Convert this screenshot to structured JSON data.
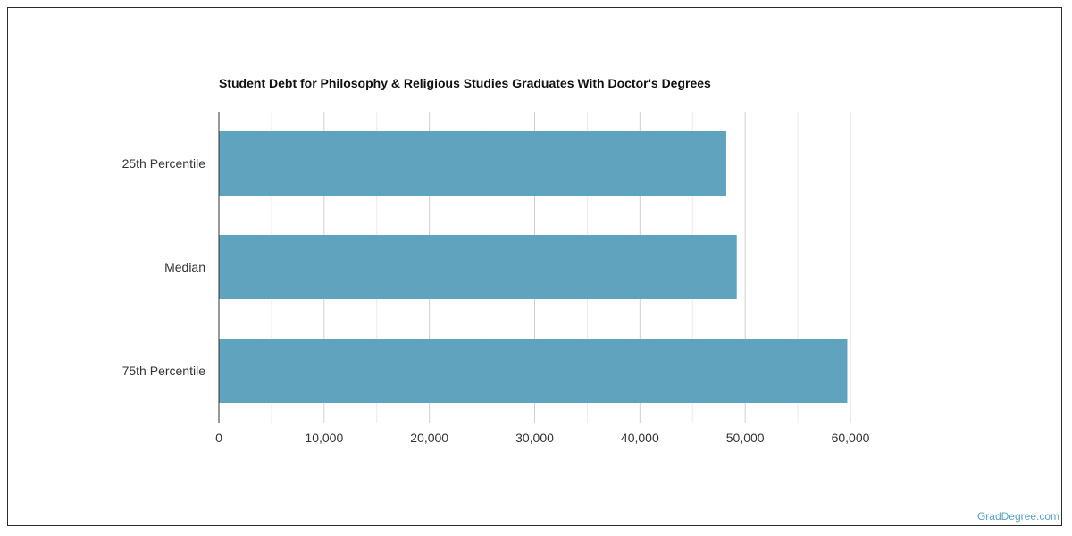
{
  "chart_data": {
    "type": "bar",
    "orientation": "horizontal",
    "title": "Student Debt for Philosophy & Religious Studies Graduates With Doctor's Degrees",
    "categories": [
      "25th Percentile",
      "Median",
      "75th Percentile"
    ],
    "values": [
      48200,
      49200,
      59700
    ],
    "xlim": [
      0,
      60000
    ],
    "xticks": [
      0,
      10000,
      20000,
      30000,
      40000,
      50000,
      60000
    ],
    "xtick_labels": [
      "0",
      "10,000",
      "20,000",
      "30,000",
      "40,000",
      "50,000",
      "60,000"
    ],
    "xlabel": "",
    "ylabel": "",
    "grid": true,
    "bar_color": "#5fa3bf"
  },
  "footer": {
    "credit": "GradDegree.com"
  }
}
